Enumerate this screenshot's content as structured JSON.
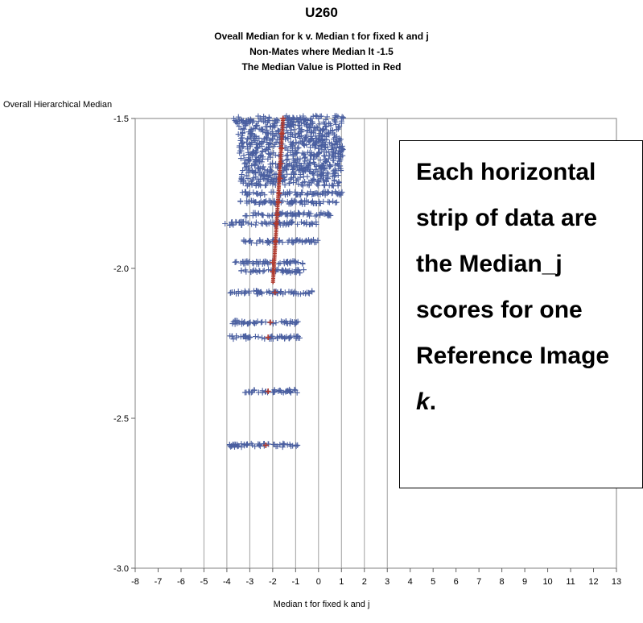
{
  "chart_data": {
    "type": "scatter",
    "title": "U260",
    "subtitles": [
      "Oveall Median for k v. Median t for fixed k and j",
      "Non-Mates where Median lt -1.5",
      "The Median Value is Plotted in Red"
    ],
    "xlabel": "Median t for fixed k and j",
    "ylabel": "Overall Hierarchical Median",
    "xlim": [
      -8,
      13
    ],
    "ylim": [
      -3.0,
      -1.5
    ],
    "xticks": [
      "-8",
      "-7",
      "-6",
      "-5",
      "-4",
      "-3",
      "-2",
      "-1",
      "0",
      "1",
      "2",
      "3",
      "4",
      "5",
      "6",
      "7",
      "8",
      "9",
      "10",
      "11",
      "12",
      "13"
    ],
    "yticks": [
      "-1.5",
      "-2.0",
      "-2.5",
      "-3.0"
    ],
    "reference_lines_x": [
      -5,
      -4,
      -3,
      -2,
      -1,
      0,
      1,
      2,
      3
    ],
    "colors": {
      "points": "#4a5fa0",
      "median": "#b03a2e",
      "grid": "#a0a0a0"
    },
    "strips": [
      {
        "y": -1.5,
        "xmin": -3.7,
        "xmax": 1.2,
        "median": -1.55
      },
      {
        "y": -1.55,
        "xmin": -3.5,
        "xmax": 1.0,
        "median": -1.6
      },
      {
        "y": -1.6,
        "xmin": -3.5,
        "xmax": 1.1,
        "median": -1.62
      },
      {
        "y": -1.65,
        "xmin": -3.4,
        "xmax": 1.0,
        "median": -1.65
      },
      {
        "y": -1.7,
        "xmin": -3.4,
        "xmax": 0.9,
        "median": -1.68
      },
      {
        "y": -1.75,
        "xmin": -3.4,
        "xmax": 1.1,
        "median": -1.72
      },
      {
        "y": -1.78,
        "xmin": -3.5,
        "xmax": 0.8,
        "median": -1.75
      },
      {
        "y": -1.82,
        "xmin": -3.3,
        "xmax": 0.6,
        "median": -1.8
      },
      {
        "y": -1.85,
        "xmin": -4.2,
        "xmax": 0.1,
        "median": -1.85
      },
      {
        "y": -1.91,
        "xmin": -3.3,
        "xmax": 0.0,
        "median": -1.88
      },
      {
        "y": -1.98,
        "xmin": -3.8,
        "xmax": -0.6,
        "median": -2.0
      },
      {
        "y": -2.01,
        "xmin": -3.5,
        "xmax": -0.6,
        "median": -2.0
      },
      {
        "y": -2.08,
        "xmin": -3.9,
        "xmax": -0.2,
        "median": -1.9
      },
      {
        "y": -2.18,
        "xmin": -3.8,
        "xmax": -0.9,
        "median": -2.1
      },
      {
        "y": -2.23,
        "xmin": -3.9,
        "xmax": -0.8,
        "median": -2.2
      },
      {
        "y": -2.41,
        "xmin": -3.3,
        "xmax": -0.9,
        "median": -2.2
      },
      {
        "y": -2.59,
        "xmin": -4.0,
        "xmax": -0.9,
        "median": -2.3
      }
    ]
  },
  "annotation": {
    "text": "Each horizontal strip of data are the Median_j scores for one Reference Image ",
    "emphasis": "k",
    "end": "."
  }
}
